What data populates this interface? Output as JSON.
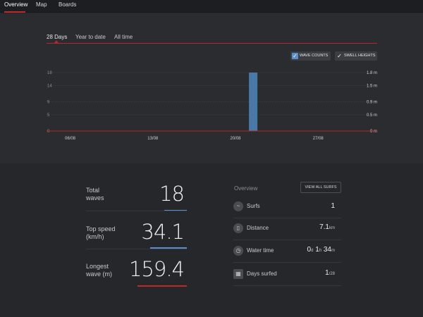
{
  "nav": {
    "tabs": [
      {
        "label": "Overview",
        "active": true
      },
      {
        "label": "Map",
        "active": false
      },
      {
        "label": "Boards",
        "active": false
      }
    ]
  },
  "range": {
    "tabs": [
      "28 Days",
      "Year to date",
      "All time"
    ],
    "active": "28 Days"
  },
  "toggles": {
    "wave_counts": "WAVE COUNTS",
    "swell_heights": "SWELL HEIGHTS",
    "check": "✓"
  },
  "chart_data": {
    "type": "bar",
    "x_ticks": [
      "06/08",
      "13/08",
      "20/08",
      "27/08"
    ],
    "y_left_ticks": [
      "18",
      "14",
      "9",
      "5",
      "0"
    ],
    "y_left_values": [
      18,
      14,
      9,
      5,
      0
    ],
    "y_right_ticks": [
      "1.8 m",
      "1.5 m",
      "0.9 m",
      "0.5 m",
      "0 m"
    ],
    "ylim": [
      0,
      18
    ],
    "x_domain": [
      0,
      28
    ],
    "bars": [
      {
        "x": 17.5,
        "value": 18
      }
    ],
    "colors": {
      "bar": "#4a79a8",
      "grid": "#3b3d43",
      "baseline": "#b3282a"
    }
  },
  "stats": [
    {
      "label_line1": "Total",
      "label_line2": "waves",
      "value": "18",
      "accent": "#5c8ecf"
    },
    {
      "label_line1": "Top speed",
      "label_line2": "(km/h)",
      "value": "34.1",
      "accent": "#5c8ecf"
    },
    {
      "label_line1": "Longest",
      "label_line2": "wave (m)",
      "value": "159.4",
      "accent": "#c0292b"
    }
  ],
  "overview": {
    "title": "Overview",
    "view_all": "VIEW ALL SURFS",
    "surfs": {
      "label": "Surfs",
      "value": "1",
      "icon": "wave-icon"
    },
    "distance": {
      "label": "Distance",
      "value": "7.1",
      "unit": "km",
      "icon": "board-icon"
    },
    "water_time": {
      "label": "Water time",
      "d": "0",
      "du": "d",
      "h": "1",
      "hu": "h",
      "m": "34",
      "mu": "m",
      "icon": "clock-icon"
    },
    "days_surfed": {
      "label": "Days surfed",
      "value": "1",
      "unit": "/28",
      "icon": "calendar-icon"
    }
  }
}
